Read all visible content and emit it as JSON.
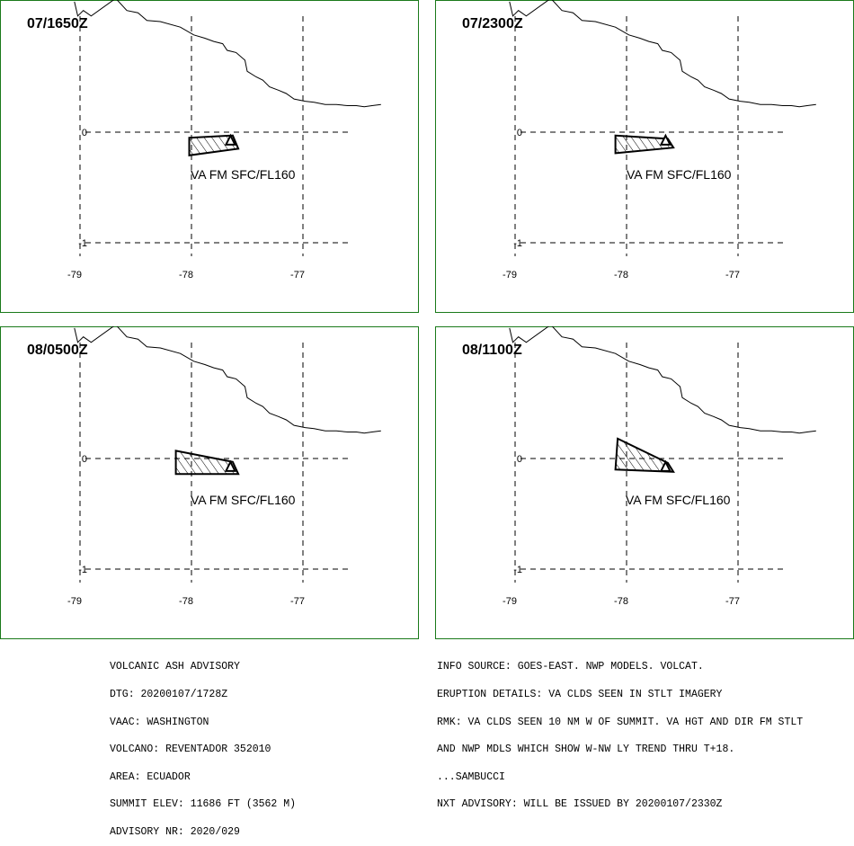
{
  "panels": [
    {
      "time": "07/1650Z",
      "label": "VA FM SFC/FL160"
    },
    {
      "time": "07/2300Z",
      "label": "VA FM SFC/FL160"
    },
    {
      "time": "08/0500Z",
      "label": "VA FM SFC/FL160"
    },
    {
      "time": "08/1100Z",
      "label": "VA FM SFC/FL160"
    }
  ],
  "axes": {
    "lat_labels": [
      "0",
      "-1"
    ],
    "lon_labels": [
      "-79",
      "-78",
      "-77"
    ]
  },
  "advisory_left": [
    "VOLCANIC ASH ADVISORY",
    "DTG: 20200107/1728Z",
    "VAAC: WASHINGTON",
    "VOLCANO: REVENTADOR 352010",
    "AREA: ECUADOR",
    "SUMMIT ELEV: 11686 FT (3562 M)",
    "ADVISORY NR: 2020/029"
  ],
  "advisory_right": [
    "INFO SOURCE: GOES-EAST. NWP MODELS. VOLCAT.",
    "ERUPTION DETAILS: VA CLDS SEEN IN STLT IMAGERY",
    "RMK: VA CLDS SEEN 10 NM W OF SUMMIT. VA HGT AND DIR FM STLT",
    "AND NWP MDLS WHICH SHOW W-NW LY TREND THRU T+18.",
    "...SAMBUCCI",
    "NXT ADVISORY: WILL BE ISSUED BY 20200107/2330Z"
  ],
  "map": {
    "border_color": "#1a7a1a",
    "line_color": "#000000",
    "ash_polygons": [
      [
        [
          -78.02,
          -0.05
        ],
        [
          -77.63,
          -0.03
        ],
        [
          -77.58,
          -0.15
        ],
        [
          -78.02,
          -0.21
        ]
      ],
      [
        [
          -78.1,
          -0.03
        ],
        [
          -77.63,
          -0.06
        ],
        [
          -77.58,
          -0.14
        ],
        [
          -78.1,
          -0.19
        ]
      ],
      [
        [
          -78.14,
          0.07
        ],
        [
          -77.63,
          -0.03
        ],
        [
          -77.58,
          -0.14
        ],
        [
          -78.14,
          -0.14
        ]
      ],
      [
        [
          -78.08,
          0.18
        ],
        [
          -77.63,
          -0.04
        ],
        [
          -77.58,
          -0.12
        ],
        [
          -78.1,
          -0.1
        ]
      ]
    ],
    "volcano": [
      -77.65,
      -0.08
    ],
    "coast": [
      [
        -79.05,
        1.18
      ],
      [
        -79.02,
        1.05
      ],
      [
        -78.97,
        1.1
      ],
      [
        -78.9,
        1.05
      ],
      [
        -78.68,
        1.21
      ],
      [
        -78.58,
        1.1
      ],
      [
        -78.48,
        1.08
      ],
      [
        -78.4,
        1.01
      ],
      [
        -78.28,
        1.0
      ],
      [
        -78.1,
        0.95
      ],
      [
        -77.98,
        0.88
      ],
      [
        -77.88,
        0.85
      ],
      [
        -77.8,
        0.82
      ],
      [
        -77.72,
        0.8
      ],
      [
        -77.68,
        0.74
      ],
      [
        -77.6,
        0.72
      ],
      [
        -77.52,
        0.65
      ],
      [
        -77.5,
        0.55
      ],
      [
        -77.42,
        0.5
      ],
      [
        -77.36,
        0.47
      ],
      [
        -77.3,
        0.41
      ],
      [
        -77.22,
        0.38
      ],
      [
        -77.15,
        0.35
      ],
      [
        -77.08,
        0.3
      ],
      [
        -76.98,
        0.28
      ],
      [
        -76.9,
        0.27
      ],
      [
        -76.8,
        0.25
      ],
      [
        -76.7,
        0.25
      ],
      [
        -76.6,
        0.24
      ],
      [
        -76.52,
        0.24
      ],
      [
        -76.45,
        0.23
      ],
      [
        -76.38,
        0.24
      ],
      [
        -76.3,
        0.25
      ]
    ]
  }
}
